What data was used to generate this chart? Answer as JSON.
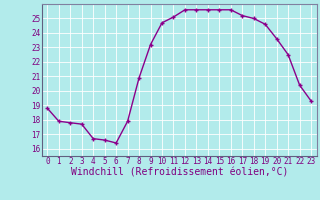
{
  "x": [
    0,
    1,
    2,
    3,
    4,
    5,
    6,
    7,
    8,
    9,
    10,
    11,
    12,
    13,
    14,
    15,
    16,
    17,
    18,
    19,
    20,
    21,
    22,
    23
  ],
  "y": [
    18.8,
    17.9,
    17.8,
    17.7,
    16.7,
    16.6,
    16.4,
    17.9,
    20.9,
    23.2,
    24.7,
    25.1,
    25.6,
    25.6,
    25.6,
    25.6,
    25.6,
    25.2,
    25.0,
    24.6,
    23.6,
    22.5,
    20.4,
    19.3
  ],
  "line_color": "#8B008B",
  "marker": "+",
  "xlabel": "Windchill (Refroidissement éolien,°C)",
  "ylim": [
    15.5,
    26.0
  ],
  "xlim": [
    -0.5,
    23.5
  ],
  "yticks": [
    16,
    17,
    18,
    19,
    20,
    21,
    22,
    23,
    24,
    25
  ],
  "xticks": [
    0,
    1,
    2,
    3,
    4,
    5,
    6,
    7,
    8,
    9,
    10,
    11,
    12,
    13,
    14,
    15,
    16,
    17,
    18,
    19,
    20,
    21,
    22,
    23
  ],
  "bg_color": "#b2ebeb",
  "grid_color": "#ffffff",
  "border_color": "#8080a0",
  "font_color": "#800080",
  "tick_fontsize": 5.5,
  "xlabel_fontsize": 7.0,
  "marker_size": 3.5,
  "line_width": 1.0
}
